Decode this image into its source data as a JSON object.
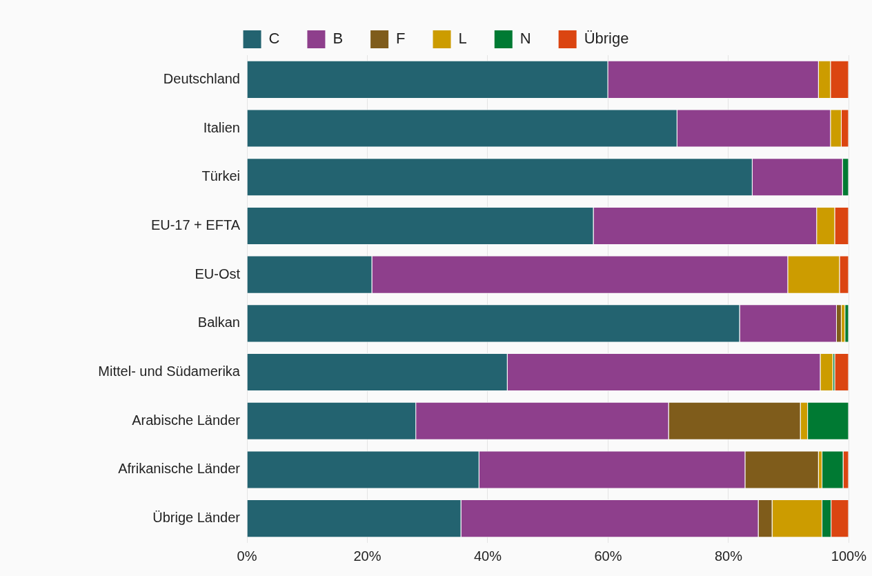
{
  "chart_data": {
    "type": "bar",
    "orientation": "horizontal",
    "stacked": true,
    "legend": "top",
    "grid": "x",
    "categories": [
      "Deutschland",
      "Italien",
      "Türkei",
      "EU-17 + EFTA",
      "EU-Ost",
      "Balkan",
      "Mittel- und Südamerika",
      "Arabische Länder",
      "Afrikanische Länder",
      "Übrige Länder"
    ],
    "series": [
      {
        "name": "C",
        "color": "#236370",
        "values": [
          60,
          71.5,
          84,
          57.6,
          20.8,
          81.9,
          43.3,
          28.1,
          38.6,
          35.6
        ]
      },
      {
        "name": "B",
        "color": "#8e3f8c",
        "values": [
          35,
          25.5,
          15,
          37.1,
          69.1,
          16.1,
          52,
          42,
          44.2,
          49.4
        ]
      },
      {
        "name": "F",
        "color": "#7f5c1b",
        "values": [
          null,
          null,
          null,
          null,
          null,
          0.8,
          null,
          21.9,
          12.2,
          2.3
        ]
      },
      {
        "name": "L",
        "color": "#cc9c00",
        "values": [
          2,
          1.8,
          null,
          3,
          8.6,
          0.6,
          2.1,
          1.2,
          0.6,
          8.3
        ]
      },
      {
        "name": "N",
        "color": "#007a33",
        "values": [
          null,
          null,
          1,
          null,
          null,
          0.6,
          0.3,
          6.8,
          3.5,
          1.5
        ]
      },
      {
        "name": "Übrige",
        "color": "#db4511",
        "values": [
          3,
          1.2,
          null,
          2.3,
          1.5,
          null,
          2.3,
          null,
          0.9,
          2.9
        ]
      }
    ],
    "xlim": [
      0,
      100
    ],
    "xticks": [
      {
        "value": 0,
        "label": "0%"
      },
      {
        "value": 20,
        "label": "20%"
      },
      {
        "value": 40,
        "label": "40%"
      },
      {
        "value": 60,
        "label": "60%"
      },
      {
        "value": 80,
        "label": "80%"
      },
      {
        "value": 100,
        "label": "100%"
      }
    ]
  }
}
